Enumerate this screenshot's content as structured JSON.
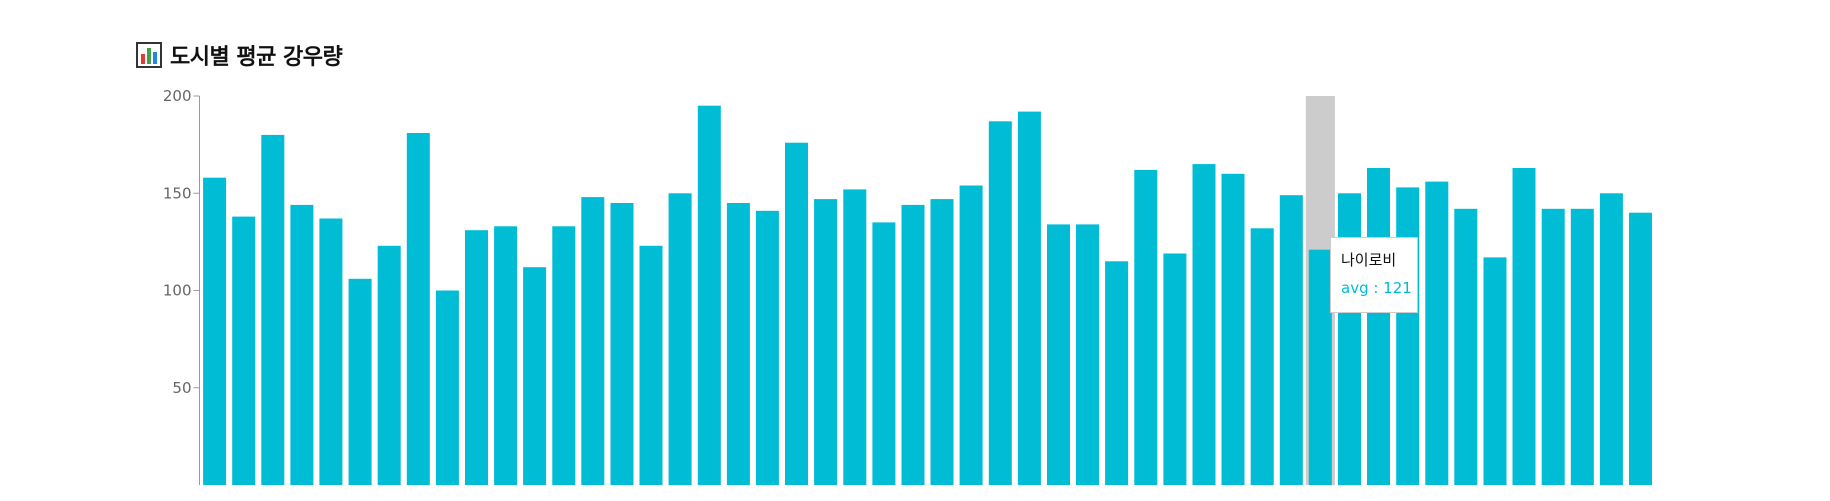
{
  "title": {
    "icon": "bar-chart-icon",
    "text": "도시별 평균 강우량"
  },
  "colors": {
    "bar": "#00bcd4",
    "cursor": "#cccccc",
    "axis": "#999999",
    "tooltip_value": "#00bcd4"
  },
  "chart_data": {
    "type": "bar",
    "title": "도시별 평균 강우량",
    "xlabel": "",
    "ylabel": "",
    "ylim": [
      0,
      200
    ],
    "yticks": [
      50,
      100,
      150,
      200
    ],
    "grid": false,
    "legend": "none",
    "series": [
      {
        "name": "avg",
        "values": [
          158,
          138,
          180,
          144,
          137,
          106,
          123,
          181,
          100,
          131,
          133,
          112,
          133,
          148,
          145,
          123,
          150,
          195,
          145,
          141,
          176,
          147,
          152,
          135,
          144,
          147,
          154,
          187,
          192,
          134,
          134,
          115,
          162,
          119,
          165,
          160,
          132,
          149,
          121,
          150,
          163,
          153,
          156,
          142,
          117,
          163,
          142,
          142,
          150,
          140
        ]
      }
    ],
    "highlight_index": 38
  },
  "tooltip": {
    "label": "나이로비",
    "value_text": "avg : 121"
  }
}
